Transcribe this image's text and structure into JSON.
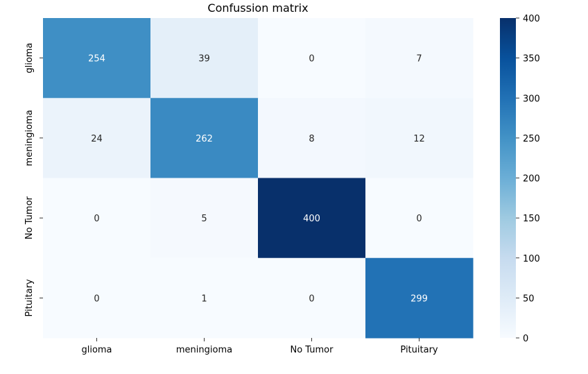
{
  "chart_data": {
    "type": "heatmap",
    "title": "Confussion matrix",
    "xlabel": "",
    "ylabel": "",
    "x_categories": [
      "glioma",
      "meningioma",
      "No Tumor",
      "Pituitary"
    ],
    "y_categories": [
      "glioma",
      "meningioma",
      "No Tumor",
      "Pituitary"
    ],
    "values": [
      [
        254,
        39,
        0,
        7
      ],
      [
        24,
        262,
        8,
        12
      ],
      [
        0,
        5,
        400,
        0
      ],
      [
        0,
        1,
        0,
        299
      ]
    ],
    "colorbar": {
      "colormap": "Blues",
      "range": [
        0,
        400
      ],
      "ticks": [
        0,
        50,
        100,
        150,
        200,
        250,
        300,
        350,
        400
      ]
    },
    "grid": false,
    "legend": "right"
  }
}
